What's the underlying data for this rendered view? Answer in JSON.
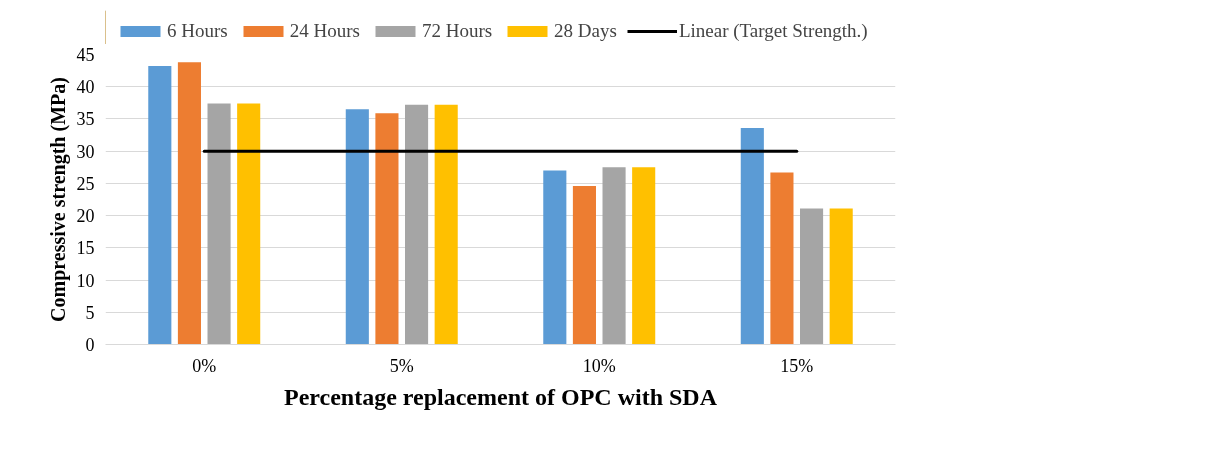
{
  "chart_data": {
    "type": "bar",
    "xlabel": "Percentage replacement of OPC with SDA",
    "ylabel": "Compressive strength (MPa)",
    "categories": [
      "0%",
      "5%",
      "10%",
      "15%"
    ],
    "series": [
      {
        "name": "6 Hours",
        "color": "#5b9bd5",
        "values": [
          43.2,
          36.5,
          27.0,
          33.6
        ]
      },
      {
        "name": "24 Hours",
        "color": "#ed7d31",
        "values": [
          43.8,
          35.9,
          24.6,
          26.7
        ]
      },
      {
        "name": "72 Hours",
        "color": "#a5a5a5",
        "values": [
          37.4,
          37.2,
          27.5,
          21.1
        ]
      },
      {
        "name": "28 Days",
        "color": "#ffc000",
        "values": [
          37.4,
          37.2,
          27.5,
          21.1
        ]
      },
      {
        "name": "Linear (Target Strength.)",
        "color": "#000000",
        "type": "line",
        "values": [
          30,
          30,
          30,
          30
        ]
      }
    ],
    "ylim": [
      0,
      45
    ],
    "yticks": [
      0,
      5,
      10,
      15,
      20,
      25,
      30,
      35,
      40,
      45
    ],
    "grid": "y",
    "legend": "top"
  }
}
